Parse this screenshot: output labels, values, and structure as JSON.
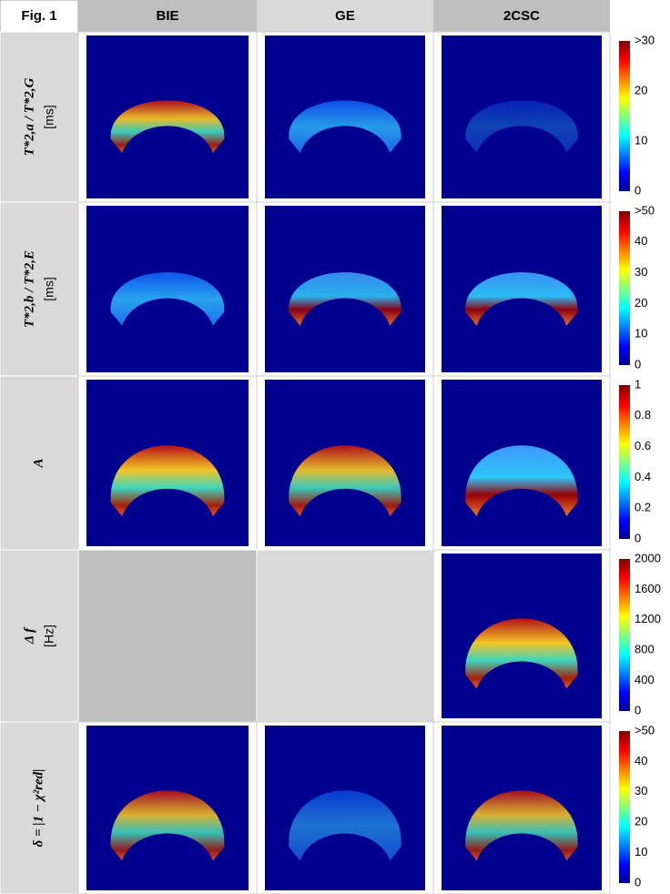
{
  "figure": {
    "label": "Fig. 1",
    "columns": [
      "BIE",
      "GE",
      "2CSC"
    ],
    "rows": [
      {
        "label": "T*2,a / T*2,G",
        "unit": "[ms]",
        "colorbar": [
          ">30",
          "20",
          "10",
          "0"
        ]
      },
      {
        "label": "T*2,b / T*2,E",
        "unit": "[ms]",
        "colorbar": [
          ">50",
          "40",
          "30",
          "20",
          "10",
          "0"
        ]
      },
      {
        "label": "A",
        "colorbar": [
          "1",
          "0.8",
          "0.6",
          "0.4",
          "0.2",
          "0"
        ]
      },
      {
        "label": "Δ f",
        "unit": "[Hz]",
        "colorbar": [
          "2000",
          "1600",
          "1200",
          "800",
          "400",
          "0"
        ]
      },
      {
        "label": "δ = |1 − χ²red|",
        "colorbar": [
          ">50",
          "40",
          "30",
          "20",
          "10",
          "0"
        ]
      }
    ]
  }
}
